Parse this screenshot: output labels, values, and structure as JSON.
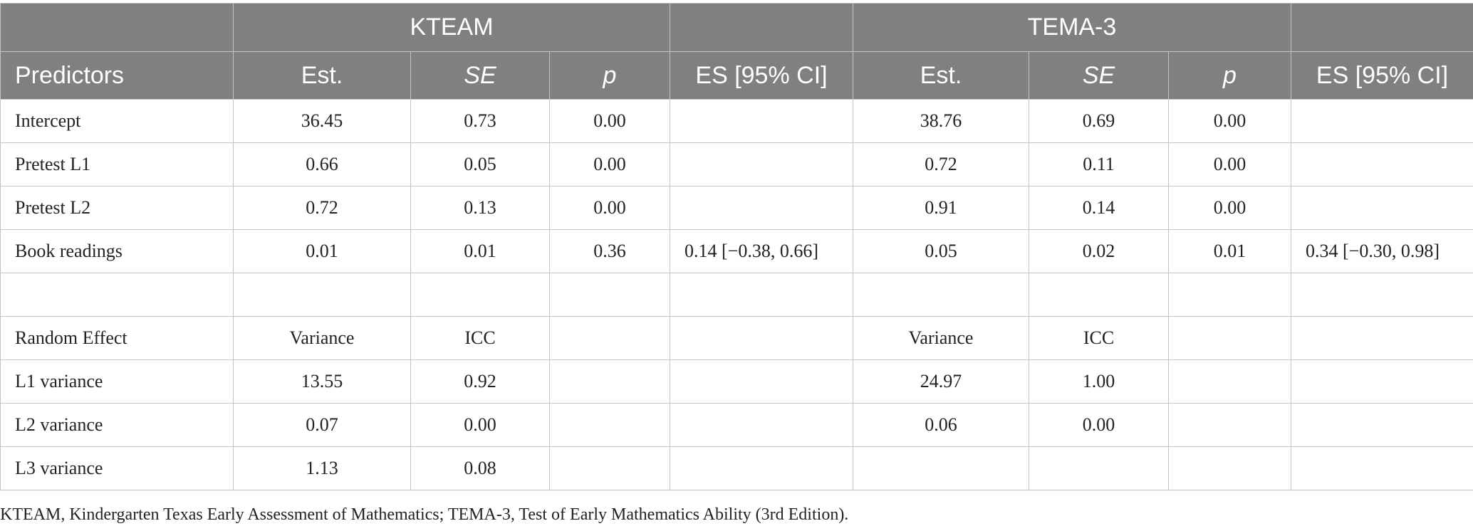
{
  "table": {
    "group_headers": [
      "",
      "KTEAM",
      "",
      "TEMA-3",
      ""
    ],
    "columns": [
      "Predictors",
      "Est.",
      "SE",
      "p",
      "ES [95% CI]",
      "Est.",
      "SE",
      "p",
      "ES [95% CI]"
    ],
    "rows": [
      [
        "Intercept",
        "36.45",
        "0.73",
        "0.00",
        "",
        "38.76",
        "0.69",
        "0.00",
        ""
      ],
      [
        "Pretest L1",
        "0.66",
        "0.05",
        "0.00",
        "",
        "0.72",
        "0.11",
        "0.00",
        ""
      ],
      [
        "Pretest L2",
        "0.72",
        "0.13",
        "0.00",
        "",
        "0.91",
        "0.14",
        "0.00",
        ""
      ],
      [
        "Book readings",
        "0.01",
        "0.01",
        "0.36",
        "0.14 [−0.38, 0.66]",
        "0.05",
        "0.02",
        "0.01",
        "0.34 [−0.30, 0.98]"
      ],
      [
        "",
        "",
        "",
        "",
        "",
        "",
        "",
        "",
        ""
      ],
      [
        "Random Effect",
        "Variance",
        "ICC",
        "",
        "",
        "Variance",
        "ICC",
        "",
        ""
      ],
      [
        "L1 variance",
        "13.55",
        "0.92",
        "",
        "",
        "24.97",
        "1.00",
        "",
        ""
      ],
      [
        "L2 variance",
        "0.07",
        "0.00",
        "",
        "",
        "0.06",
        "0.00",
        "",
        ""
      ],
      [
        "L3 variance",
        "1.13",
        "0.08",
        "",
        "",
        "",
        "",
        "",
        ""
      ]
    ]
  },
  "footnote": "KTEAM, Kindergarten Texas Early Assessment of Mathematics; TEMA-3, Test of Early Mathematics Ability (3rd Edition)."
}
